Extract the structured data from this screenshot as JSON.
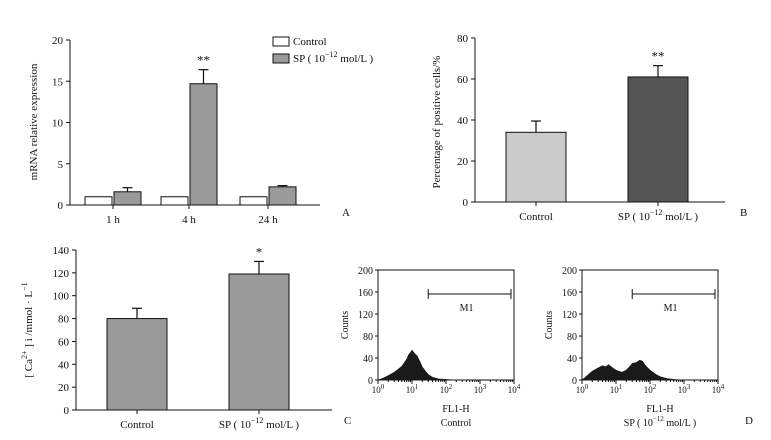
{
  "colors": {
    "control": "#ffffff",
    "sp": "#9a9a9a",
    "control_b": "#cbcbcb",
    "sp_b": "#555555",
    "axis": "#111111"
  },
  "legend_a": {
    "control": "Control",
    "sp": "SP ( 10",
    "sp_exp": "−12",
    "sp_unit": " mol/L )"
  },
  "panel_labels": {
    "a": "A",
    "b": "B",
    "c": "C",
    "d": "D"
  },
  "axis_text": {
    "a_ylabel": "mRNA relative expression",
    "b_ylabel": "Percentage of positive cells/%",
    "c_ylabel_pre": "[ Ca",
    "c_ylabel_sup": "2+",
    "c_ylabel_post": " ] i /mmol · L",
    "c_ylabel_sup2": "−1",
    "ycounts": "Counts",
    "fl1h": "FL1-H",
    "m1": "M1"
  },
  "sp_label": {
    "pre": "SP ( 10",
    "exp": "−12",
    "post": " mol/L )"
  },
  "flow_log_ticks": [
    "0",
    "1",
    "2",
    "3",
    "4"
  ],
  "flow_log_base": "10",
  "chart_data": [
    {
      "type": "bar",
      "panel": "A",
      "categories": [
        "1 h",
        "4 h",
        "24 h"
      ],
      "series": [
        {
          "name": "Control",
          "values": [
            1,
            1,
            1
          ],
          "errors": [
            0,
            0,
            0
          ]
        },
        {
          "name": "SP ( 10−12 mol/L )",
          "values": [
            1.6,
            14.7,
            2.2
          ],
          "errors": [
            0.5,
            1.7,
            0.15
          ]
        }
      ],
      "annotations": [
        {
          "category": "4 h",
          "text": "**"
        }
      ],
      "ylabel": "mRNA relative expression",
      "ylim": [
        0,
        20
      ],
      "yticks": [
        0,
        5,
        10,
        15,
        20
      ]
    },
    {
      "type": "bar",
      "panel": "B",
      "categories": [
        "Control",
        "SP ( 10−12 mol/L )"
      ],
      "values": [
        34,
        61
      ],
      "errors": [
        5.5,
        5.5
      ],
      "annotations": [
        {
          "category": "SP ( 10−12 mol/L )",
          "text": "**"
        }
      ],
      "ylabel": "Percentage of positive cells/%",
      "ylim": [
        0,
        80
      ],
      "yticks": [
        0,
        20,
        40,
        60,
        80
      ]
    },
    {
      "type": "bar",
      "panel": "C",
      "categories": [
        "Control",
        "SP ( 10−12 mol/L )"
      ],
      "values": [
        80,
        119
      ],
      "errors": [
        9,
        11
      ],
      "annotations": [
        {
          "category": "SP ( 10−12 mol/L )",
          "text": "*"
        }
      ],
      "ylabel": "[ Ca2+ ] i /mmol · L−1",
      "ylim": [
        0,
        140
      ],
      "yticks": [
        0,
        20,
        40,
        60,
        80,
        100,
        120,
        140
      ]
    },
    {
      "type": "area",
      "panel": "D-left",
      "xlabel": "FL1-H",
      "caption": "Control",
      "ylabel": "Counts",
      "xscale": "log",
      "xlim": [
        1,
        10000
      ],
      "ylim": [
        0,
        200
      ],
      "yticks": [
        0,
        40,
        80,
        120,
        160,
        200
      ],
      "gate": {
        "name": "M1",
        "range": [
          30,
          10000
        ]
      },
      "x": [
        1,
        1.5,
        2,
        3,
        4,
        5,
        6,
        7,
        8,
        9,
        10,
        12,
        14,
        17,
        20,
        25,
        30,
        40,
        60,
        100,
        200,
        500
      ],
      "y": [
        0,
        4,
        8,
        14,
        20,
        25,
        32,
        38,
        46,
        50,
        54,
        48,
        44,
        34,
        24,
        16,
        10,
        5,
        2,
        1,
        0,
        0
      ]
    },
    {
      "type": "area",
      "panel": "D-right",
      "xlabel": "FL1-H",
      "caption": "SP ( 10−12 mol/L )",
      "ylabel": "Counts",
      "xscale": "log",
      "xlim": [
        1,
        10000
      ],
      "ylim": [
        0,
        200
      ],
      "yticks": [
        0,
        40,
        80,
        120,
        160,
        200
      ],
      "gate": {
        "name": "M1",
        "range": [
          30,
          10000
        ]
      },
      "x": [
        1,
        1.3,
        1.7,
        2,
        3,
        4,
        5,
        6,
        8,
        10,
        12,
        15,
        20,
        25,
        30,
        40,
        50,
        60,
        70,
        80,
        100,
        150,
        200,
        300,
        500,
        1000
      ],
      "y": [
        0,
        6,
        12,
        16,
        22,
        26,
        24,
        28,
        22,
        18,
        16,
        14,
        18,
        24,
        30,
        32,
        36,
        34,
        28,
        24,
        18,
        10,
        6,
        3,
        1,
        0
      ]
    }
  ]
}
